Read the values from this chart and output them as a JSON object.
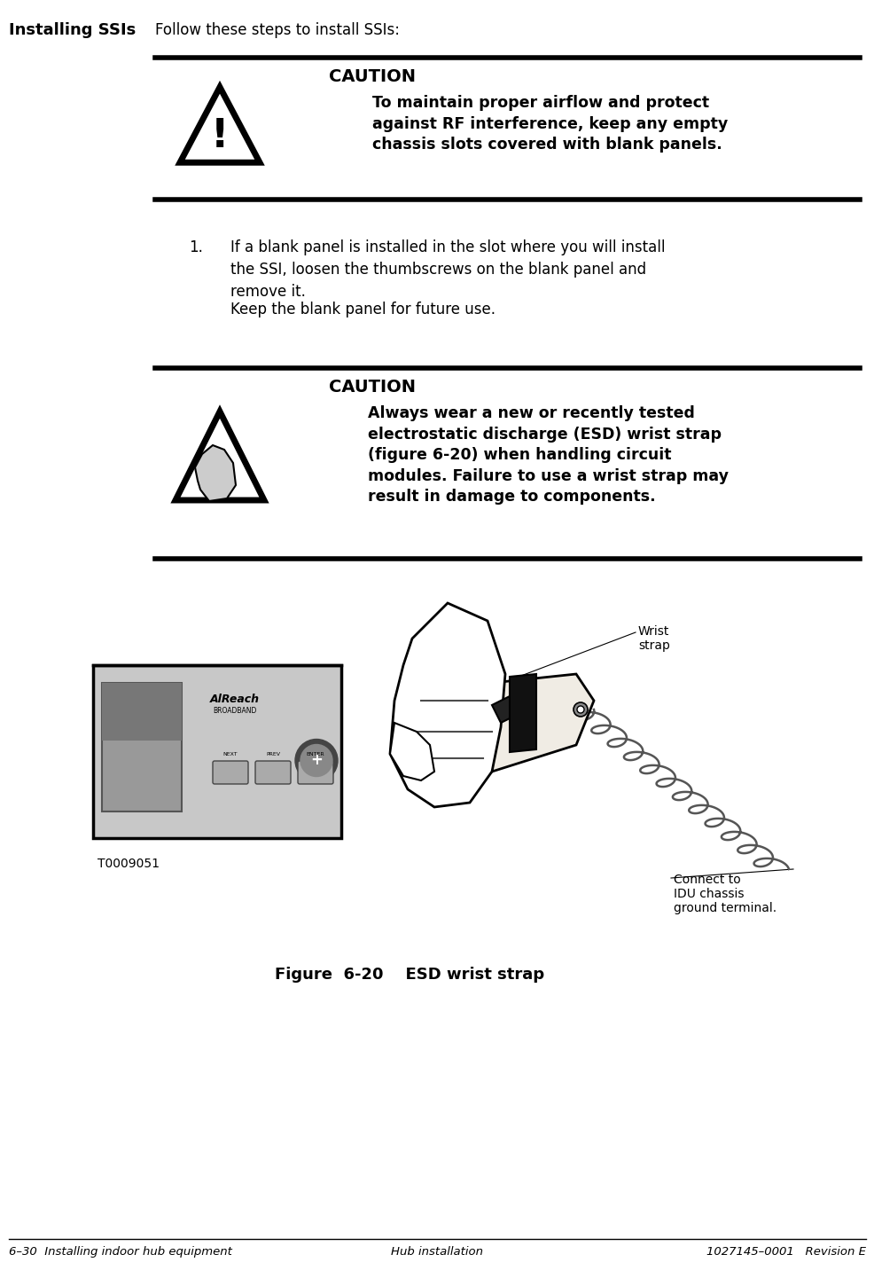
{
  "bg_color": "#ffffff",
  "title_left_bold": "Installing SSIs",
  "title_right": "Follow these steps to install SSIs:",
  "caution1_title": "CAUTION",
  "caution1_body": "To maintain proper airflow and protect\nagainst RF interference, keep any empty\nchassis slots covered with blank panels.",
  "step1_num": "1.",
  "step1_text": "If a blank panel is installed in the slot where you will install\nthe SSI, loosen the thumbscrews on the blank panel and\nremove it.",
  "step1_sub": "Keep the blank panel for future use.",
  "caution2_title": "CAUTION",
  "caution2_body": "Always wear a new or recently tested\nelectrostatic discharge (ESD) wrist strap\n(figure 6-20) when handling circuit\nmodules. Failure to use a wrist strap may\nresult in damage to components.",
  "fig_label": "T0009051",
  "fig_caption": "Figure  6-20    ESD wrist strap",
  "annotation1": "Wrist\nstrap",
  "annotation2": "Connect to\nIDU chassis\nground terminal.",
  "footer_left": "6–30  Installing indoor hub equipment",
  "footer_center": "Hub installation",
  "footer_right": "1027145–0001   Revision E"
}
